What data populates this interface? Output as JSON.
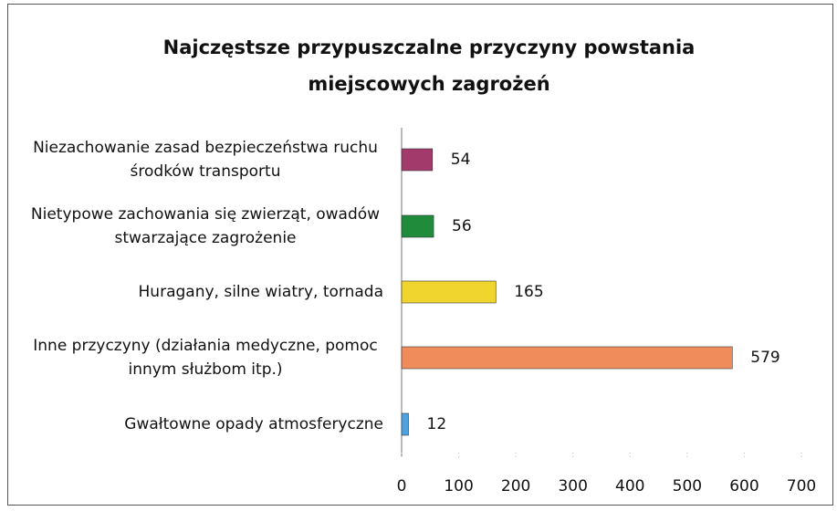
{
  "chart_data": {
    "type": "bar",
    "orientation": "horizontal",
    "title": "Najczęstsze przypuszczalne przyczyny powstania miejscowych zagrożeń",
    "categories": [
      "Niezachowanie zasad bezpieczeństwa ruchu środków transportu",
      "Nietypowe zachowania się zwierząt, owadów stwarzające zagrożenie",
      "Huragany, silne wiatry, tornada",
      "Inne przyczyny (działania medyczne, pomoc innym służbom itp.)",
      "Gwałtowne opady atmosferyczne"
    ],
    "values": [
      54,
      56,
      165,
      579,
      12
    ],
    "colors": [
      "#a23b6c",
      "#1f8b3b",
      "#f0d52e",
      "#f08b5c",
      "#4da3e2"
    ],
    "xlim": [
      0,
      700
    ],
    "xticks": [
      0,
      100,
      200,
      300,
      400,
      500,
      600,
      700
    ],
    "grid": false
  }
}
